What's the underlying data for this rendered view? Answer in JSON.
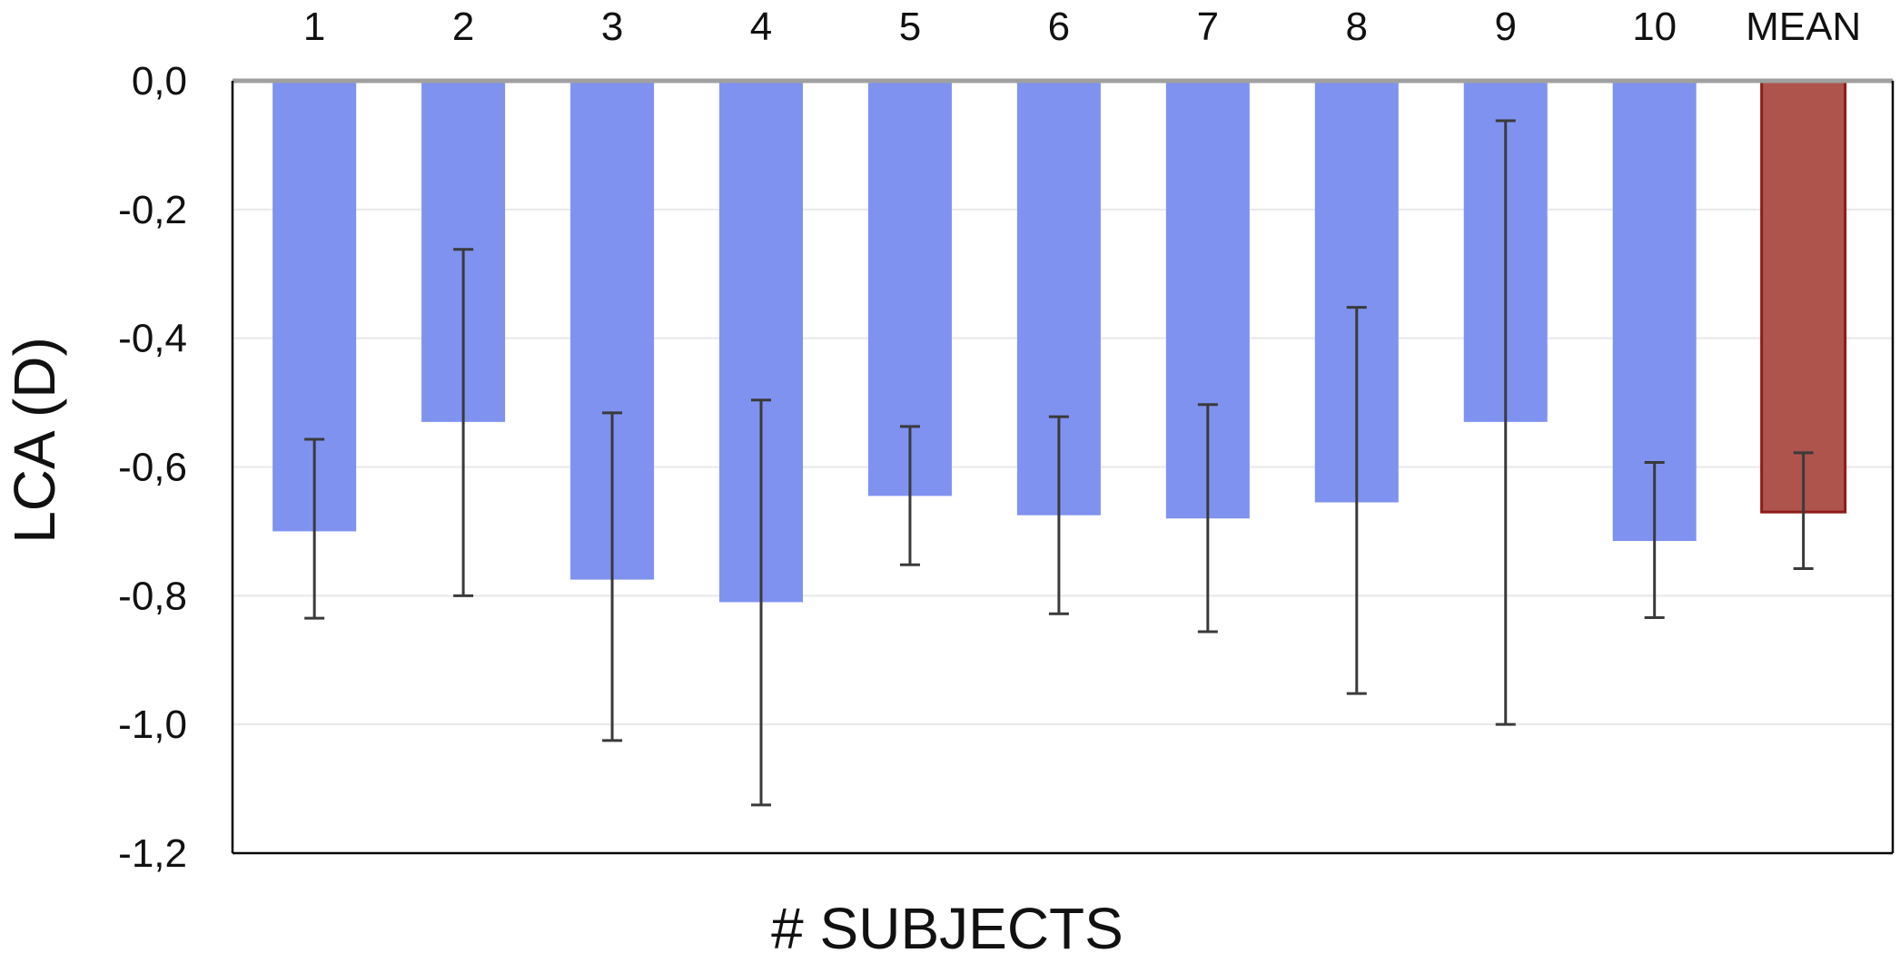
{
  "chart_data": {
    "type": "bar",
    "xlabel": "# SUBJECTS",
    "ylabel": "LCA  (D)",
    "ylim": [
      -1.2,
      0.0
    ],
    "yticks": [
      "0,0",
      "-0,2",
      "-0,4",
      "-0,6",
      "-0,8",
      "-1,0",
      "-1,2"
    ],
    "ytick_values": [
      0.0,
      -0.2,
      -0.4,
      -0.6,
      -0.8,
      -1.0,
      -1.2
    ],
    "x_axis_position": "top",
    "grid": true,
    "categories": [
      "1",
      "2",
      "3",
      "4",
      "5",
      "6",
      "7",
      "8",
      "9",
      "10",
      "MEAN"
    ],
    "values": [
      -0.7,
      -0.53,
      -0.775,
      -0.81,
      -0.645,
      -0.675,
      -0.68,
      -0.655,
      -0.53,
      -0.715,
      -0.67
    ],
    "error_low": [
      -0.835,
      -0.8,
      -1.025,
      -1.125,
      -0.752,
      -0.828,
      -0.856,
      -0.952,
      -1.0,
      -0.834,
      -0.758
    ],
    "error_high": [
      -0.557,
      -0.262,
      -0.516,
      -0.496,
      -0.537,
      -0.522,
      -0.503,
      -0.352,
      -0.062,
      -0.593,
      -0.578
    ],
    "colors": {
      "subject_bar": "#7f92f0",
      "mean_bar": "#ae544d",
      "mean_bar_border": "#8f1b18",
      "error_bar": "#3a3a3a",
      "grid": "#e8e8e8",
      "zero_line": "#a0a0a0",
      "frame": "#000000"
    }
  }
}
